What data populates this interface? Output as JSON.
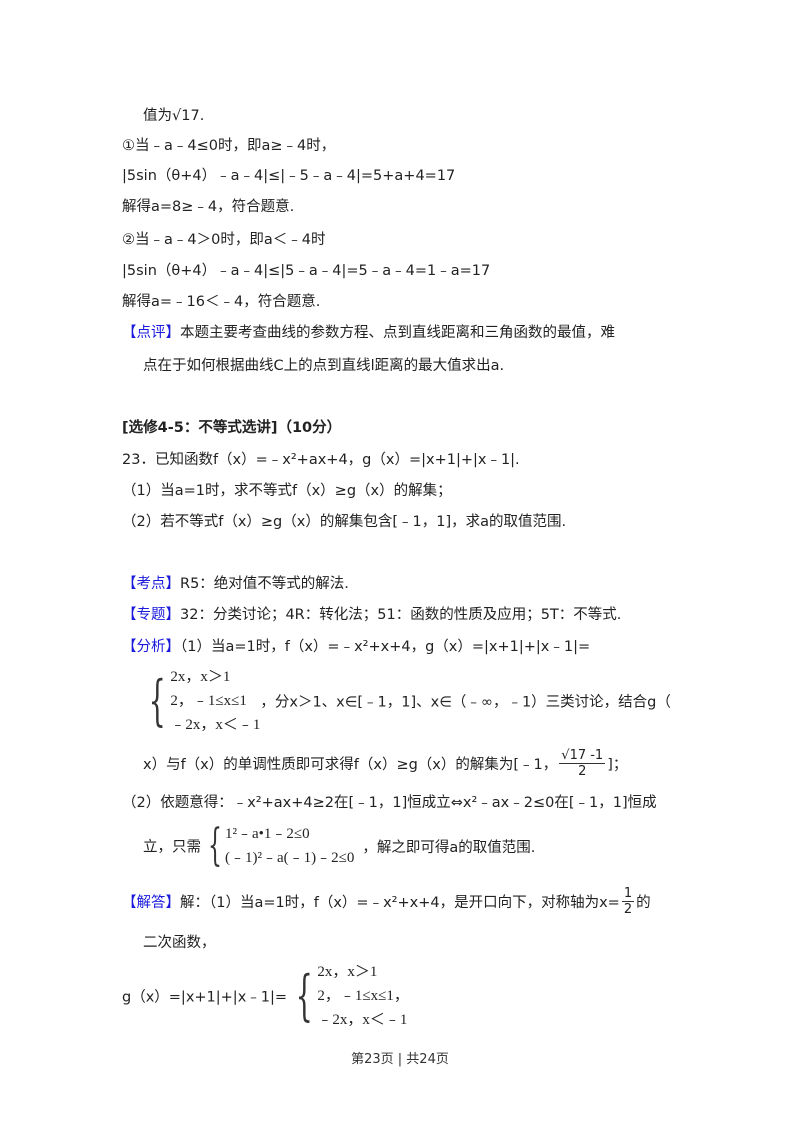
{
  "lines": {
    "l1": "值为√17.",
    "l2": "①当﹣a﹣4≤0时，即a≥﹣4时，",
    "l3": "|5sin（θ+4）﹣a﹣4|≤|﹣5﹣a﹣4|=5+a+4=17",
    "l4": "解得a=8≥﹣4，符合题意.",
    "l5": "②当﹣a﹣4＞0时，即a＜﹣4时",
    "l6": "|5sin（θ+4）﹣a﹣4|≤|5﹣a﹣4|=5﹣a﹣4=1﹣a=17",
    "l7": "解得a=﹣16＜﹣4，符合题意.",
    "review_tag": "【点评】",
    "review_1": "本题主要考查曲线的参数方程、点到直线距离和三角函数的最值，难",
    "review_2": "点在于如何根据曲线C上的点到直线l距离的最大值求出a.",
    "section": "[选修4-5：不等式选讲]（10分）",
    "q23": "23．已知函数f（x）=﹣x²+ax+4，g（x）=|x+1|+|x﹣1|.",
    "q23_1": "（1）当a=1时，求不等式f（x）≥g（x）的解集；",
    "q23_2": "（2）若不等式f（x）≥g（x）的解集包含[﹣1，1]，求a的取值范围.",
    "kd_tag": "【考点】",
    "kd": "R5：绝对值不等式的解法.",
    "zt_tag": "【专题】",
    "zt": "32：分类讨论；4R：转化法；51：函数的性质及应用；5T：不等式.",
    "fx_tag": "【分析】",
    "fx_1": "（1）当a=1时，f（x）=﹣x²+x+4，g（x）=|x+1|+|x﹣1|=",
    "pw_rows": [
      "2x，x＞1",
      "2，﹣1≤x≤1",
      "﹣2x，x＜﹣1"
    ],
    "fx_2": "，分x＞1、x∈[﹣1，1]、x∈（﹣∞，﹣1）三类讨论，结合g（",
    "fx_3": "x）与f（x）的单调性质即可求得f（x）≥g（x）的解集为[﹣1，",
    "fx_3_num": "√17 -1",
    "fx_3_den": "2",
    "fx_3_end": "]；",
    "fx_4": "（2）依题意得：﹣x²+ax+4≥2在[﹣1，1]恒成立⇔x²﹣ax﹣2≤0在[﹣1，1]恒成",
    "fx_5_pre": "立，只需",
    "sys_rows": [
      "1²﹣a•1﹣2≤0",
      "(﹣1)²﹣a(﹣1)﹣2≤0"
    ],
    "fx_5_post": "，解之即可得a的取值范围.",
    "jd_tag": "【解答】",
    "jd_1": "解：（1）当a=1时，f（x）=﹣x²+x+4，是开口向下，对称轴为x=",
    "jd_1_num": "1",
    "jd_1_den": "2",
    "jd_1_end": "的",
    "jd_2": "二次函数，",
    "jd_3": "g（x）=|x+1|+|x﹣1|=",
    "jd_rows": [
      "2x，x＞1",
      "2，﹣1≤x≤1，",
      "﹣2x，x＜﹣1"
    ]
  },
  "footer": "第23页 | 共24页"
}
